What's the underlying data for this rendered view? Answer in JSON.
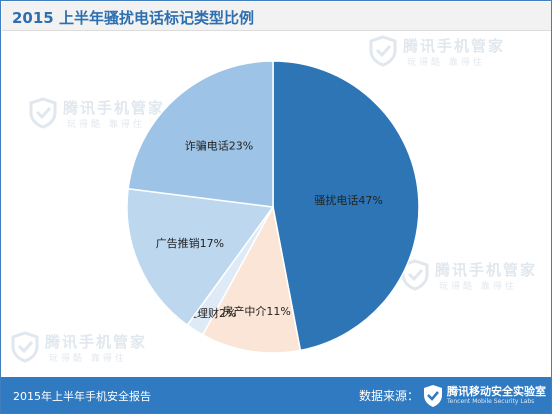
{
  "header": {
    "title": "2015 上半年骚扰电话标记类型比例"
  },
  "watermark": {
    "text": "腾讯手机管家",
    "sub": "玩得酷  靠得住"
  },
  "footer": {
    "report": "2015年上半年手机安全报告",
    "source_label": "数据来源：",
    "lab_name": "腾讯移动安全实验室",
    "lab_sub": "Tencent Mobile Security Labs"
  },
  "colors": {
    "frame": "#3f7fbf",
    "footer_bg": "#2f7ac0",
    "title": "#2d6fb0"
  },
  "chart_data": {
    "type": "pie",
    "title": "2015 上半年骚扰电话标记类型比例",
    "slices": [
      {
        "label": "骚扰电话",
        "value": 47,
        "display": "骚扰电话47%",
        "color": "#2e75b6"
      },
      {
        "label": "房产中介",
        "value": 11,
        "display": "房产中介11%",
        "color": "#fbe5d6"
      },
      {
        "label": "保险理财",
        "value": 2,
        "display": "保险理财2%",
        "color": "#deebf7"
      },
      {
        "label": "广告推销",
        "value": 17,
        "display": "广告推销17%",
        "color": "#bdd7ee"
      },
      {
        "label": "诈骗电话",
        "value": 23,
        "display": "诈骗电话23%",
        "color": "#9dc3e6"
      }
    ],
    "start": "12 o'clock",
    "direction": "clockwise"
  }
}
